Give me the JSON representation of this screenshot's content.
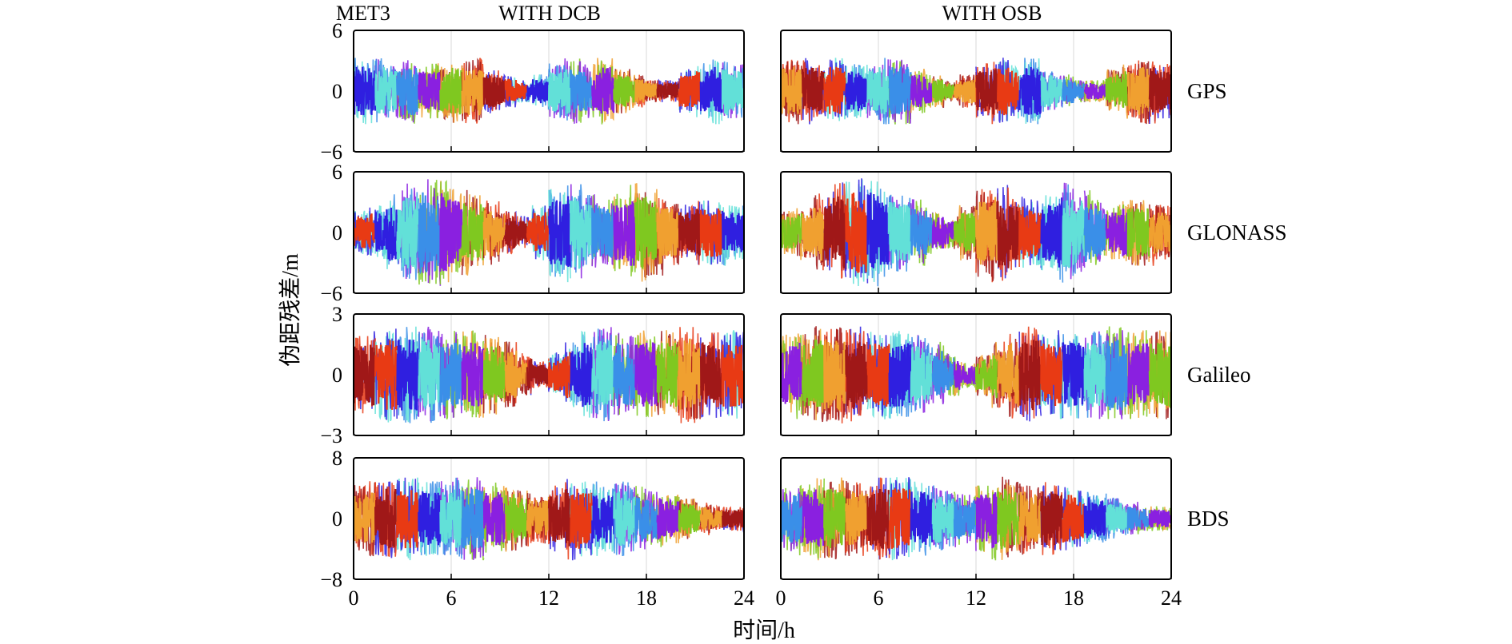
{
  "figure": {
    "receiver_label": "MET3",
    "column_titles": [
      "WITH DCB",
      "WITH OSB"
    ],
    "ylabel": "伪距残差/m",
    "xlabel": "时间/h"
  },
  "chart_data": {
    "type": "line",
    "xlabel": "时间/h",
    "ylabel": "伪距残差/m",
    "xlim": [
      0,
      24
    ],
    "x_ticks": [
      0,
      6,
      12,
      18,
      24
    ],
    "grid": true,
    "columns": [
      "WITH DCB",
      "WITH OSB"
    ],
    "rows": [
      {
        "system": "GPS",
        "ylim": [
          -6,
          6
        ],
        "y_ticks": [
          6,
          0,
          -6
        ],
        "y_tick_labels": [
          "6",
          "0",
          "−6"
        ],
        "envelope": [
          3,
          3,
          2.5,
          3,
          2.5,
          2.5,
          3,
          3,
          2,
          1.5,
          1,
          1.5,
          2.5,
          3,
          2.5,
          3,
          2,
          1.5,
          1,
          1,
          2,
          2.5,
          3,
          2.5
        ]
      },
      {
        "system": "GLONASS",
        "ylim": [
          -6,
          6
        ],
        "y_ticks": [
          6,
          0,
          -6
        ],
        "y_tick_labels": [
          "6",
          "0",
          "−6"
        ],
        "envelope": [
          2,
          2.5,
          3.5,
          4.5,
          5,
          5,
          4,
          3.5,
          3,
          2,
          1.5,
          2.5,
          4,
          4.5,
          3.5,
          3,
          3.5,
          4.5,
          4,
          3,
          2.5,
          3,
          3,
          2.5
        ]
      },
      {
        "system": "Galileo",
        "ylim": [
          -3,
          3
        ],
        "y_ticks": [
          3,
          0,
          -3
        ],
        "y_tick_labels": [
          "3",
          "0",
          "−3"
        ],
        "envelope": [
          1.8,
          2,
          2.2,
          2.2,
          2.2,
          2,
          2,
          2,
          1.8,
          1.5,
          1,
          0.6,
          1,
          1.5,
          2,
          2.2,
          2,
          2,
          2,
          2,
          2.2,
          2,
          2,
          2
        ]
      },
      {
        "system": "BDS",
        "ylim": [
          -8,
          8
        ],
        "y_ticks": [
          8,
          0,
          -8
        ],
        "y_tick_labels": [
          "8",
          "0",
          "−8"
        ],
        "envelope": [
          4,
          4.5,
          5,
          5,
          4.5,
          4.5,
          5,
          5,
          4.5,
          4,
          3.5,
          3,
          4,
          5,
          4.5,
          4,
          4.5,
          4,
          3.5,
          3,
          2.5,
          2,
          1.5,
          1.5
        ]
      }
    ],
    "series_colors": [
      "#2f1fe0",
      "#f0a030",
      "#3a8fe8",
      "#e83a14",
      "#7fc820",
      "#62e0d8",
      "#a01818",
      "#8a20e0"
    ]
  }
}
